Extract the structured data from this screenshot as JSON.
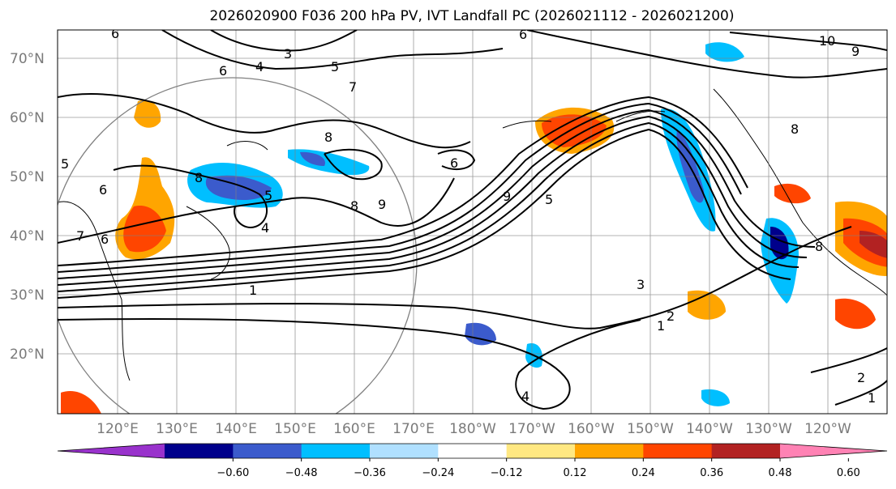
{
  "title": "2026020900 F036 200 hPa PV, IVT Landfall PC (2026021112 - 2026021200)",
  "lat_labels": [
    "70°N",
    "60°N",
    "50°N",
    "40°N",
    "30°N",
    "20°N"
  ],
  "lon_labels": [
    "120°E",
    "130°E",
    "140°E",
    "150°E",
    "160°E",
    "170°E",
    "180°W",
    "170°W",
    "160°W",
    "150°W",
    "140°W",
    "130°W",
    "120°W"
  ],
  "contour_labels": [
    "6",
    "9",
    "3",
    "4",
    "6",
    "5",
    "7",
    "10",
    "9",
    "8",
    "8",
    "5",
    "6",
    "7",
    "5",
    "4",
    "8",
    "9",
    "9",
    "5",
    "1",
    "3",
    "2",
    "1",
    "4",
    "2",
    "1",
    "8",
    "8",
    "6",
    "6"
  ],
  "colorbar": {
    "tick_labels": [
      "−0.60",
      "−0.48",
      "−0.36",
      "−0.24",
      "−0.12",
      "0.12",
      "0.24",
      "0.36",
      "0.48",
      "0.60"
    ],
    "colors": [
      "#9932cc",
      "#00008b",
      "#3b5bcc",
      "#00bfff",
      "#b0e0ff",
      "#ffffff",
      "#ffe882",
      "#ffa500",
      "#ff4500",
      "#b22222",
      "#ff82b4"
    ]
  }
}
